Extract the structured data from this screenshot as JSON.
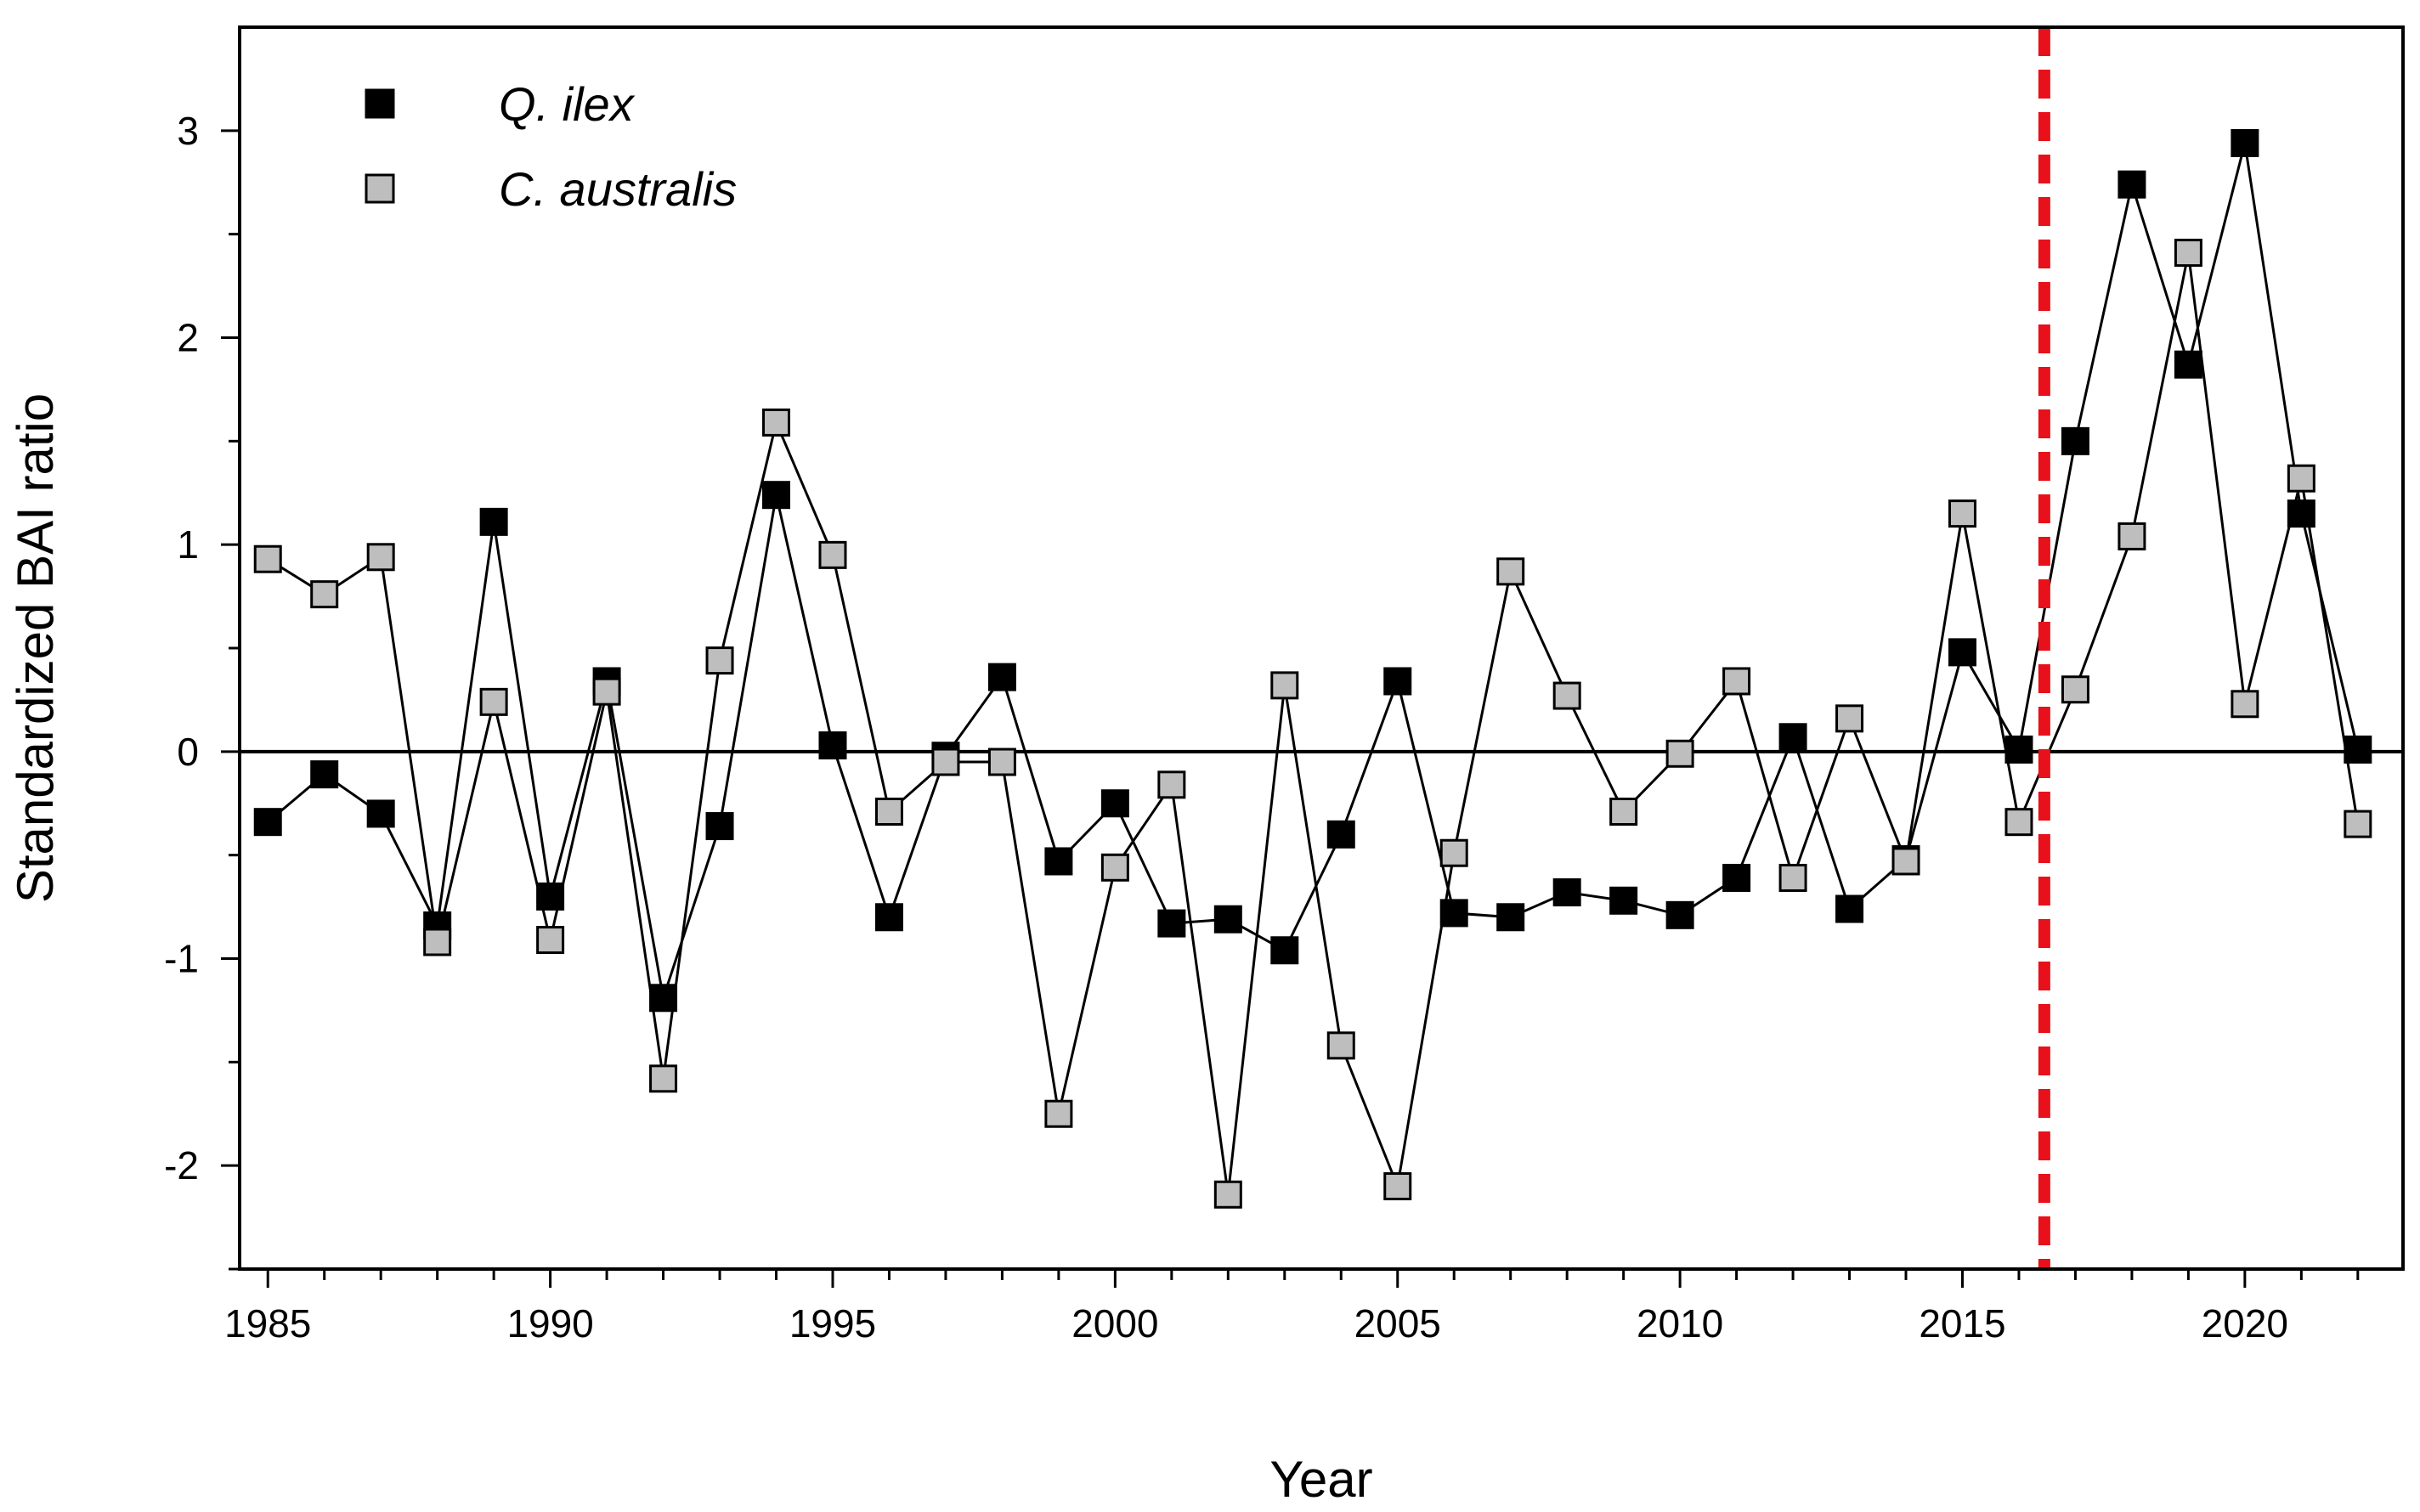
{
  "chart_data": {
    "type": "line",
    "title": "",
    "xlabel": "Year",
    "ylabel": "Standardized BAI ratio",
    "xlim": [
      1984.5,
      2022.8
    ],
    "ylim": [
      -2.5,
      3.5
    ],
    "x_ticks": [
      1985,
      1990,
      1995,
      2000,
      2005,
      2010,
      2015,
      2020
    ],
    "x_tick_labels": [
      "1985",
      "1990",
      "1995",
      "2000",
      "2005",
      "2010",
      "2015",
      "2020"
    ],
    "y_ticks": [
      -2,
      -1,
      0,
      1,
      2,
      3
    ],
    "y_tick_labels": [
      "-2",
      "-1",
      "0",
      "1",
      "2",
      "3"
    ],
    "y_minor_ticks": [
      -2.5,
      -1.5,
      -0.5,
      0.5,
      1.5,
      2.5
    ],
    "x_minor_step": 1,
    "grid": false,
    "legend_position": "top-left",
    "reference_line": {
      "y": 0,
      "color": "#000000"
    },
    "threshold_line": {
      "x": 2016.45,
      "color": "#e8101a",
      "style": "dashed"
    },
    "x": [
      1985,
      1986,
      1987,
      1988,
      1989,
      1990,
      1991,
      1992,
      1993,
      1994,
      1995,
      1996,
      1997,
      1998,
      1999,
      2000,
      2001,
      2002,
      2003,
      2004,
      2005,
      2006,
      2007,
      2008,
      2009,
      2010,
      2011,
      2012,
      2013,
      2014,
      2015,
      2016,
      2017,
      2018,
      2019,
      2020,
      2021,
      2022
    ],
    "series": [
      {
        "name": "Q. ilex",
        "marker_color": "#000000",
        "values": [
          -0.34,
          -0.11,
          -0.3,
          -0.84,
          1.11,
          -0.7,
          0.34,
          -1.19,
          -0.36,
          1.24,
          0.03,
          -0.8,
          -0.02,
          0.36,
          -0.53,
          -0.25,
          -0.83,
          -0.81,
          -0.96,
          -0.4,
          0.34,
          -0.78,
          -0.8,
          -0.68,
          -0.72,
          -0.79,
          -0.61,
          0.07,
          -0.76,
          -0.52,
          0.48,
          0.01,
          1.5,
          2.74,
          1.87,
          2.94,
          1.15,
          0.01
        ]
      },
      {
        "name": "C. australis",
        "marker_color": "#bebebe",
        "values": [
          0.93,
          0.76,
          0.94,
          -0.92,
          0.24,
          -0.91,
          0.29,
          -1.58,
          0.44,
          1.59,
          0.95,
          -0.29,
          -0.05,
          -0.05,
          -1.75,
          -0.56,
          -0.16,
          -2.14,
          0.32,
          -1.42,
          -2.1,
          -0.49,
          0.87,
          0.27,
          -0.29,
          -0.01,
          0.34,
          -0.61,
          0.16,
          -0.53,
          1.15,
          -0.34,
          0.3,
          1.04,
          2.41,
          0.23,
          1.32,
          -0.35
        ]
      }
    ]
  }
}
